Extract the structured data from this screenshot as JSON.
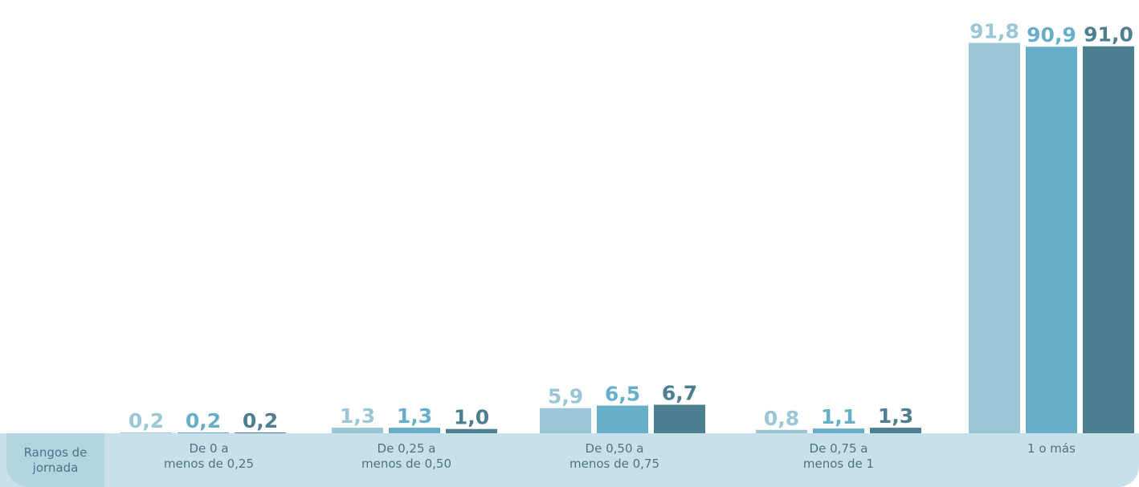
{
  "chart_data": {
    "type": "bar",
    "axis_title": "Rangos de\njornada",
    "categories": [
      "De 0 a\nmenos de 0,25",
      "De 0,25 a\nmenos de 0,50",
      "De 0,50 a\nmenos de 0,75",
      "De 0,75 a\nmenos de 1",
      "1 o más"
    ],
    "series": [
      {
        "color": "#9bc6d6",
        "values": [
          0.2,
          1.3,
          5.9,
          0.8,
          91.8
        ],
        "labels": [
          "0,2",
          "1,3",
          "5,9",
          "0,8",
          "91,8"
        ]
      },
      {
        "color": "#67afc8",
        "values": [
          0.2,
          1.3,
          6.5,
          1.1,
          90.9
        ],
        "labels": [
          "0,2",
          "1,3",
          "6,5",
          "1,1",
          "90,9"
        ]
      },
      {
        "color": "#4e7f91",
        "values": [
          0.2,
          1.0,
          6.7,
          1.3,
          91.0
        ],
        "labels": [
          "0,2",
          "1,0",
          "6,7",
          "1,3",
          "91,0"
        ]
      }
    ],
    "ylim": [
      0,
      100
    ],
    "grid": false,
    "legend": "none"
  }
}
